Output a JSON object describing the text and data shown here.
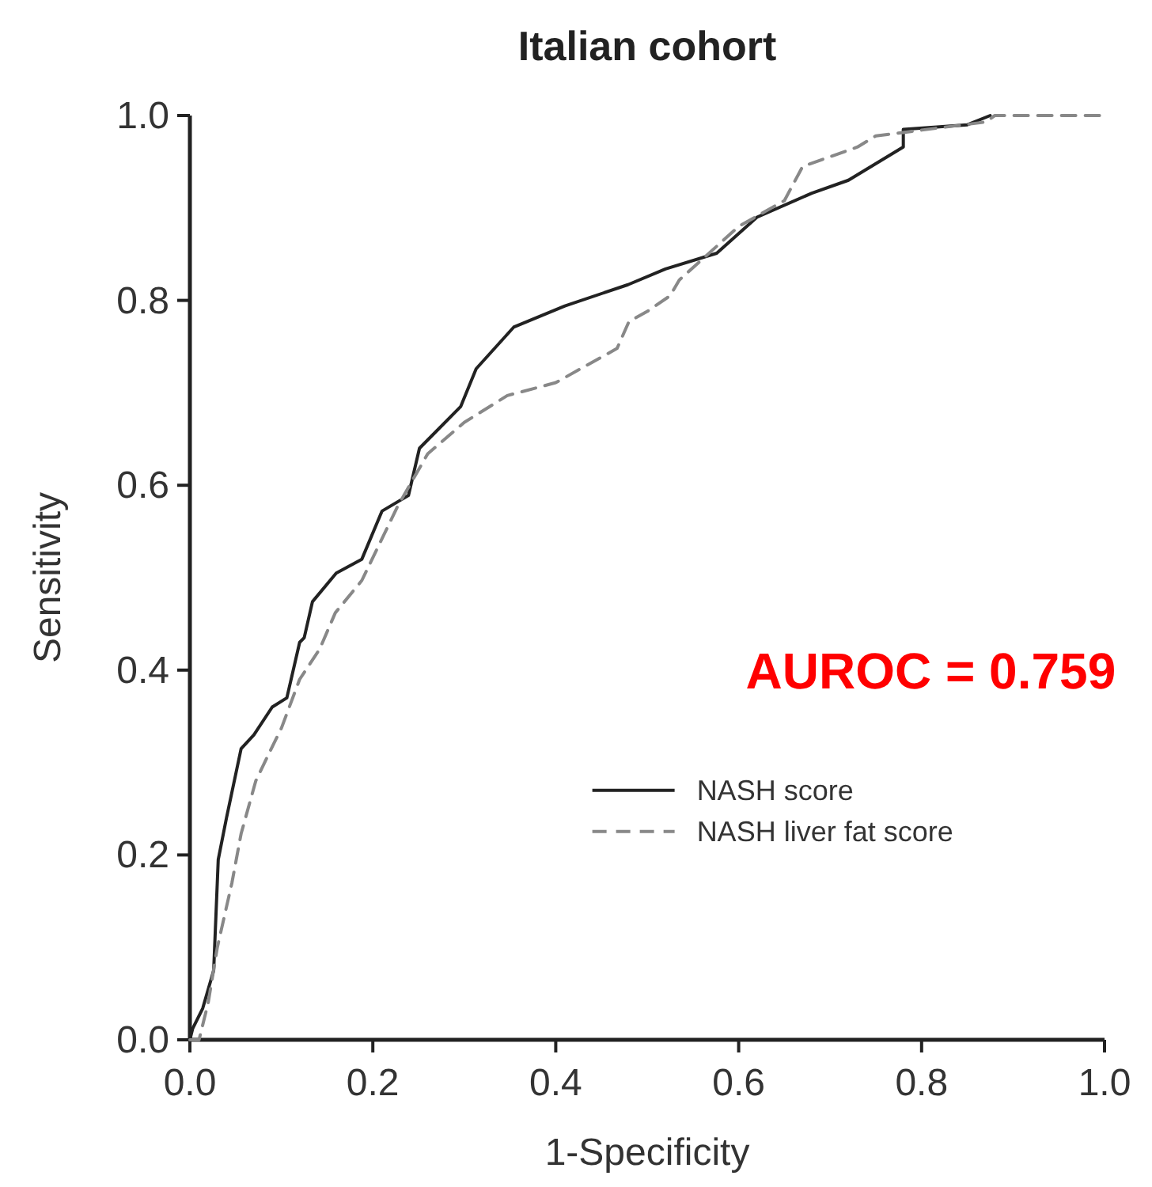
{
  "chart_data": {
    "type": "line",
    "title": "Italian cohort",
    "xlabel": "1-Specificity",
    "ylabel": "Sensitivity",
    "xlim": [
      0,
      1
    ],
    "ylim": [
      0,
      1
    ],
    "xticks": [
      {
        "value": 0,
        "label": "0.0"
      },
      {
        "value": 0.2,
        "label": "0.2"
      },
      {
        "value": 0.4,
        "label": "0.4"
      },
      {
        "value": 0.6,
        "label": "0.6"
      },
      {
        "value": 0.8,
        "label": "0.8"
      },
      {
        "value": 1,
        "label": "1.0"
      }
    ],
    "yticks": [
      {
        "value": 0,
        "label": "0.0"
      },
      {
        "value": 0.2,
        "label": "0.2"
      },
      {
        "value": 0.4,
        "label": "0.4"
      },
      {
        "value": 0.6,
        "label": "0.6"
      },
      {
        "value": 0.8,
        "label": "0.8"
      },
      {
        "value": 1,
        "label": "1.0"
      }
    ],
    "grid": false,
    "legend": "right",
    "marker": "none",
    "annotations": [
      "AUROC = 0.759"
    ],
    "series": [
      {
        "name": "NASH score",
        "color": "#222222",
        "line_style": "solid",
        "x": [
          0,
          0.003,
          0.014,
          0.026,
          0.031,
          0.04,
          0.056,
          0.07,
          0.09,
          0.106,
          0.12,
          0.125,
          0.134,
          0.16,
          0.188,
          0.21,
          0.239,
          0.251,
          0.296,
          0.313,
          0.354,
          0.41,
          0.479,
          0.52,
          0.576,
          0.62,
          0.68,
          0.72,
          0.78,
          0.78,
          0.85,
          0.875
        ],
        "values": [
          0,
          0.012,
          0.034,
          0.075,
          0.195,
          0.24,
          0.315,
          0.33,
          0.36,
          0.37,
          0.43,
          0.435,
          0.474,
          0.505,
          0.52,
          0.572,
          0.589,
          0.64,
          0.685,
          0.726,
          0.771,
          0.794,
          0.817,
          0.834,
          0.851,
          0.89,
          0.916,
          0.93,
          0.966,
          0.985,
          0.99,
          1
        ]
      },
      {
        "name": "NASH liver fat score",
        "color": "#888888",
        "line_style": "dashed",
        "x": [
          0,
          0.01,
          0.02,
          0.03,
          0.046,
          0.056,
          0.072,
          0.089,
          0.1,
          0.12,
          0.142,
          0.159,
          0.188,
          0.227,
          0.26,
          0.3,
          0.347,
          0.4,
          0.467,
          0.48,
          0.5,
          0.525,
          0.535,
          0.6,
          0.65,
          0.67,
          0.73,
          0.75,
          0.87,
          0.88,
          1
        ],
        "values": [
          0,
          0,
          0.04,
          0.1,
          0.17,
          0.223,
          0.28,
          0.315,
          0.337,
          0.39,
          0.423,
          0.462,
          0.497,
          0.577,
          0.634,
          0.668,
          0.697,
          0.711,
          0.748,
          0.777,
          0.788,
          0.805,
          0.822,
          0.88,
          0.908,
          0.945,
          0.966,
          0.978,
          0.993,
          1,
          1
        ]
      }
    ]
  }
}
